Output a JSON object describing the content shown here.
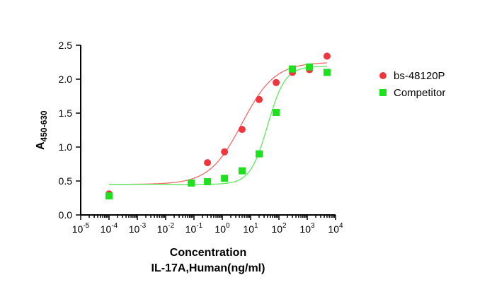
{
  "chart_data": {
    "type": "scatter",
    "x_scale": "log10",
    "xlim_exponent": [
      -5,
      4
    ],
    "x_tick_exponents": [
      -5,
      -4,
      -3,
      -2,
      -1,
      0,
      1,
      2,
      3,
      4
    ],
    "x_tick_base": "10",
    "ylim": [
      0.0,
      2.5
    ],
    "y_ticks": [
      "0.0",
      "0.5",
      "1.0",
      "1.5",
      "2.0",
      "2.5"
    ],
    "xlabel_line1": "Concentration",
    "xlabel_line2": "IL-17A,Human(ng/ml)",
    "ylabel_main": "A",
    "ylabel_sub": "450-630",
    "legend_position": "right",
    "series": [
      {
        "name": "bs-48120P",
        "marker": "circle",
        "color": "#f0363c",
        "curve_color": "#f26a6a",
        "x": [
          0.0001,
          0.3,
          1.2,
          5,
          20,
          80,
          300,
          1200,
          5000
        ],
        "y": [
          0.31,
          0.77,
          0.93,
          1.26,
          1.7,
          1.95,
          2.1,
          2.14,
          2.34
        ],
        "fit": {
          "bottom": 0.45,
          "top": 2.25,
          "ec50": 5,
          "hill": 0.75
        }
      },
      {
        "name": "Competitor",
        "marker": "square",
        "color": "#1de11d",
        "curve_color": "#5ee85e",
        "x": [
          0.0001,
          0.08,
          0.3,
          1.2,
          5,
          20,
          80,
          300,
          1200,
          5000
        ],
        "y": [
          0.28,
          0.47,
          0.49,
          0.54,
          0.65,
          0.9,
          1.51,
          2.15,
          2.18,
          2.1
        ],
        "fit": {
          "bottom": 0.45,
          "top": 2.19,
          "ec50": 40,
          "hill": 1.4
        }
      }
    ]
  }
}
